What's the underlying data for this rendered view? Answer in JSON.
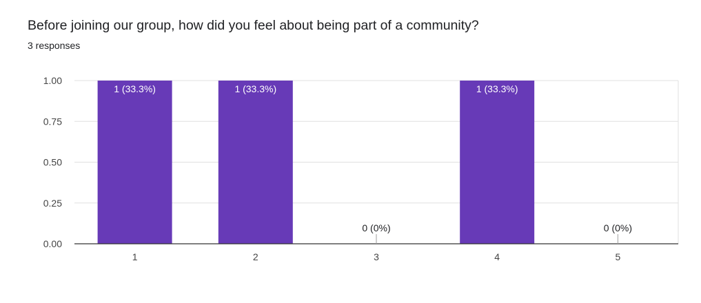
{
  "question": {
    "title": "Before joining our group, how did you feel about being part of a community?",
    "responses": "3 responses"
  },
  "colors": {
    "bar": "#673ab7",
    "grid": "#e0e0e0",
    "axis": "#333333",
    "label_inside": "#ffffff",
    "label_outside": "#202124",
    "tick_text": "#444444"
  },
  "chart_data": {
    "type": "bar",
    "categories": [
      "1",
      "2",
      "3",
      "4",
      "5"
    ],
    "values": [
      1,
      1,
      0,
      1,
      0
    ],
    "data_labels": [
      "1 (33.3%)",
      "1 (33.3%)",
      "0 (0%)",
      "1 (33.3%)",
      "0 (0%)"
    ],
    "y_ticks": [
      "0.00",
      "0.25",
      "0.50",
      "0.75",
      "1.00"
    ],
    "y_tick_values": [
      0,
      0.25,
      0.5,
      0.75,
      1
    ],
    "ylim": [
      0,
      1
    ],
    "grid": true,
    "legend": "none"
  }
}
